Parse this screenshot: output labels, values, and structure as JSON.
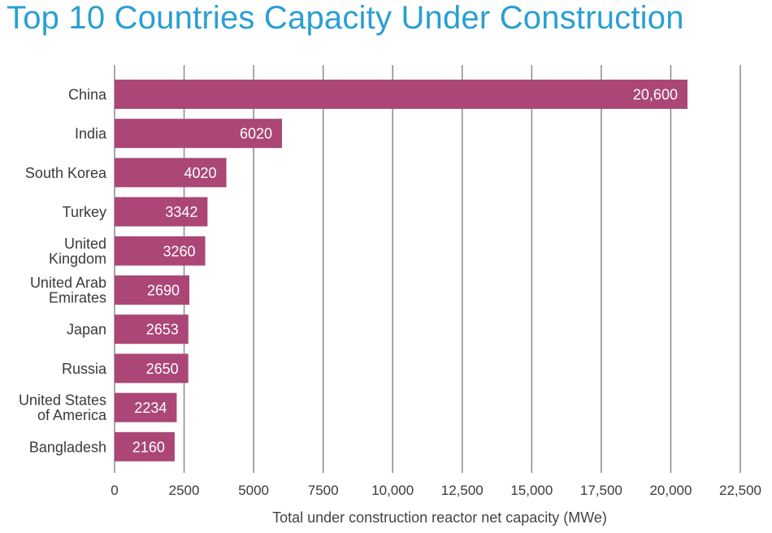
{
  "chart_data": {
    "type": "bar",
    "orientation": "horizontal",
    "title": "Top 10 Countries Capacity Under Construction",
    "xlabel": "Total under construction reactor net capacity (MWe)",
    "ylabel": "",
    "categories": [
      [
        "China"
      ],
      [
        "India"
      ],
      [
        "South Korea"
      ],
      [
        "Turkey"
      ],
      [
        "United",
        "Kingdom"
      ],
      [
        "United Arab",
        "Emirates"
      ],
      [
        "Japan"
      ],
      [
        "Russia"
      ],
      [
        "United States",
        "of America"
      ],
      [
        "Bangladesh"
      ]
    ],
    "values": [
      20600,
      6020,
      4020,
      3342,
      3260,
      2690,
      2653,
      2650,
      2234,
      2160
    ],
    "value_labels": [
      "20,600",
      "6020",
      "4020",
      "3342",
      "3260",
      "2690",
      "2653",
      "2650",
      "2234",
      "2160"
    ],
    "xlim": [
      0,
      22500
    ],
    "xticks": [
      0,
      2500,
      5000,
      7500,
      10000,
      12500,
      15000,
      17500,
      20000,
      22500
    ],
    "xtick_labels": [
      "0",
      "2500",
      "5000",
      "7500",
      "10,000",
      "12,500",
      "15,000",
      "17,500",
      "20,000",
      "22,500"
    ],
    "grid": "vertical",
    "legend": "none",
    "colors": {
      "bar": "#ab4677",
      "title": "#2a9fd3"
    }
  }
}
